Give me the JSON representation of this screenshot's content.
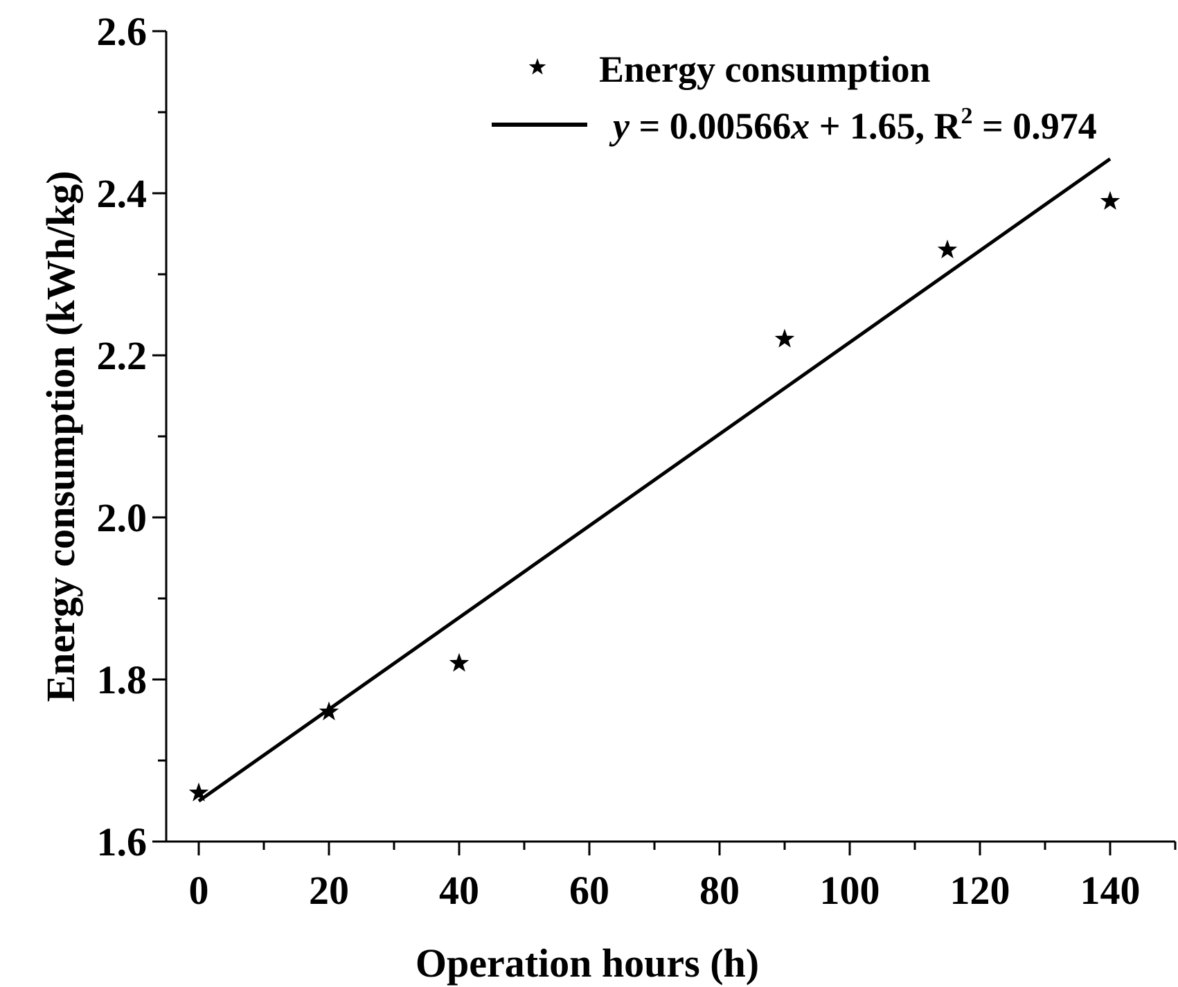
{
  "chart_data": {
    "type": "scatter",
    "title": "",
    "xlabel": "Operation hours (h)",
    "ylabel": "Energy consumption (kWh/kg)",
    "xlim": [
      -5,
      150
    ],
    "ylim": [
      1.6,
      2.6
    ],
    "x_ticks": [
      0,
      20,
      40,
      60,
      80,
      100,
      120,
      140
    ],
    "x_tick_labels": [
      "0",
      "20",
      "40",
      "60",
      "80",
      "100",
      "120",
      "140"
    ],
    "y_ticks": [
      1.6,
      1.8,
      2.0,
      2.2,
      2.4,
      2.6
    ],
    "y_tick_labels": [
      "1.6",
      "1.8",
      "2.0",
      "2.2",
      "2.4",
      "2.6"
    ],
    "grid": false,
    "legend_position": "top-right",
    "series": [
      {
        "name": "Energy consumption",
        "kind": "scatter",
        "marker": "star",
        "color": "#000000",
        "x": [
          0,
          20,
          40,
          90,
          115,
          140
        ],
        "y": [
          1.66,
          1.76,
          1.82,
          2.22,
          2.33,
          2.39
        ]
      },
      {
        "name": "y = 0.00566x + 1.65, R2 = 0.974",
        "kind": "line",
        "color": "#000000",
        "fit": {
          "slope": 0.00566,
          "intercept": 1.65,
          "x_range": [
            0,
            140
          ]
        }
      }
    ],
    "legend": {
      "scatter_label": "Energy consumption",
      "fit_label_parts": {
        "y": "y",
        "eq1": " = 0.00566",
        "x": "x",
        "eq2": " + 1.65, R",
        "sup": "2",
        "eq3": " = 0.974"
      }
    }
  }
}
